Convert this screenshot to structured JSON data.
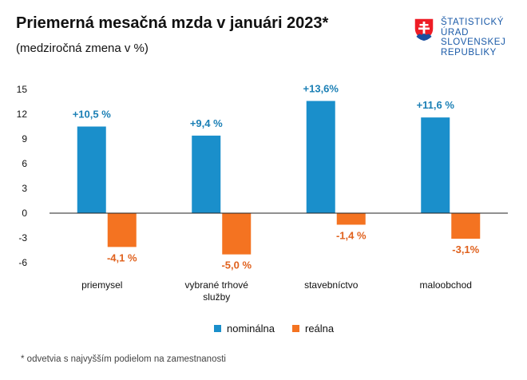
{
  "header": {
    "title": "Priemerná mesačná mzda v januári 2023*",
    "subtitle": "(medziročná zmena v %)"
  },
  "logo": {
    "icon": "slovak-coat-of-arms-icon",
    "lines": [
      "ŠTATISTICKÝ",
      "ÚRAD",
      "SLOVENSKEJ",
      "REPUBLIKY"
    ]
  },
  "colors": {
    "nominal": "#1a8fcb",
    "real": "#f47321",
    "nominal_label": "#1a7fb5",
    "real_label": "#e0611d"
  },
  "chart_data": {
    "type": "bar",
    "categories": [
      [
        "priemysel"
      ],
      [
        "vybrané trhové",
        "služby"
      ],
      [
        "stavebníctvo"
      ],
      [
        "maloobchod"
      ]
    ],
    "series": [
      {
        "name": "nominálna",
        "values": [
          10.5,
          9.4,
          13.6,
          11.6
        ],
        "labels": [
          "+10,5 %",
          "+9,4 %",
          "+13,6%",
          "+11,6 %"
        ]
      },
      {
        "name": "reálna",
        "values": [
          -4.1,
          -5.0,
          -1.4,
          -3.1
        ],
        "labels": [
          "-4,1 %",
          "-5,0 %",
          "-1,4 %",
          "-3,1%"
        ]
      }
    ],
    "ylim": [
      -6,
      15
    ],
    "yticks": [
      15,
      12,
      9,
      6,
      3,
      0,
      -3,
      -6
    ],
    "grid": false,
    "legend_position": "bottom"
  },
  "footnote": "* odvetvia s najvyšším podielom na zamestnanosti"
}
